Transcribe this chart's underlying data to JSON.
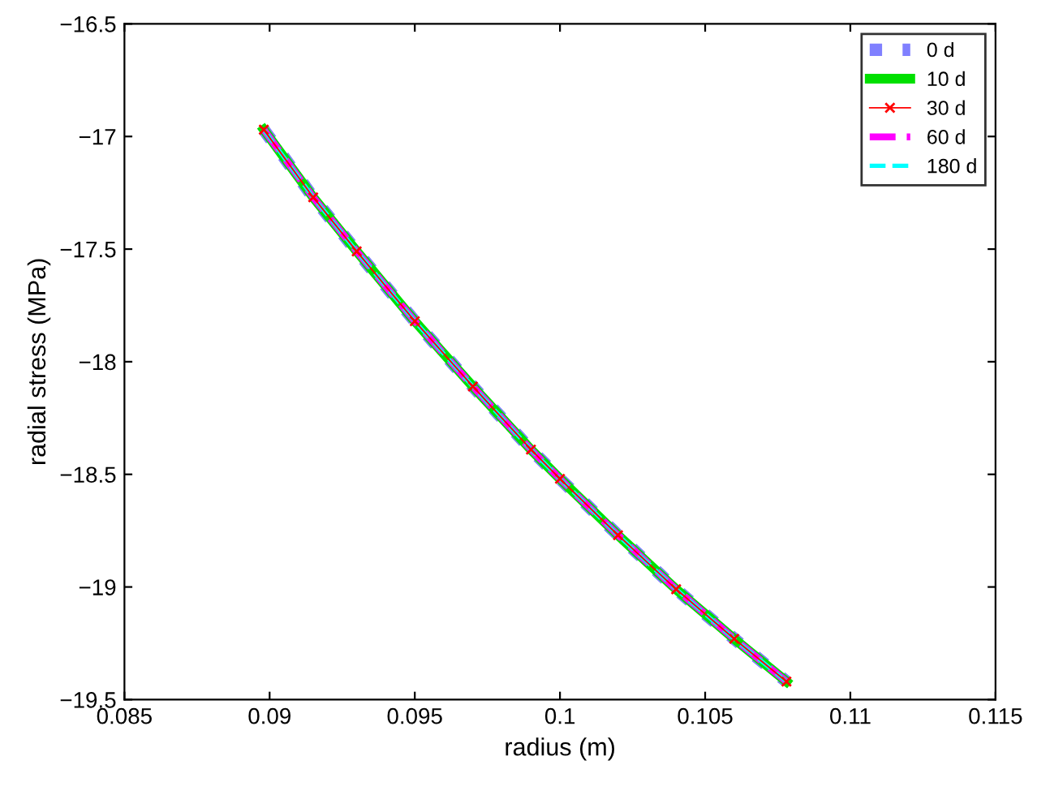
{
  "chart_data": {
    "type": "line",
    "xlabel": "radius (m)",
    "ylabel": "radial stress (MPa)",
    "x": [
      0.0898,
      0.0915,
      0.093,
      0.095,
      0.097,
      0.099,
      0.1,
      0.102,
      0.104,
      0.106,
      0.1078
    ],
    "series": [
      {
        "name": "0 d",
        "color": "#8080ff",
        "line_style": "dotted",
        "marker": "none",
        "values": [
          -16.97,
          -17.27,
          -17.51,
          -17.82,
          -18.11,
          -18.39,
          -18.52,
          -18.77,
          -19.01,
          -19.23,
          -19.42
        ]
      },
      {
        "name": "10 d",
        "color": "#00e000",
        "line_style": "solid",
        "marker": "none",
        "values": [
          -16.97,
          -17.27,
          -17.51,
          -17.82,
          -18.11,
          -18.39,
          -18.52,
          -18.77,
          -19.01,
          -19.23,
          -19.42
        ]
      },
      {
        "name": "30 d",
        "color": "#ff0000",
        "line_style": "solid",
        "marker": "cross",
        "values": [
          -16.97,
          -17.27,
          -17.51,
          -17.82,
          -18.11,
          -18.39,
          -18.52,
          -18.77,
          -19.01,
          -19.23,
          -19.42
        ]
      },
      {
        "name": "60 d",
        "color": "#ff00ff",
        "line_style": "dashed",
        "marker": "none",
        "values": [
          -16.97,
          -17.27,
          -17.51,
          -17.82,
          -18.11,
          -18.39,
          -18.52,
          -18.77,
          -19.01,
          -19.23,
          -19.42
        ]
      },
      {
        "name": "180 d",
        "color": "#00ffff",
        "line_style": "dashed",
        "marker": "none",
        "values": [
          -16.97,
          -17.27,
          -17.51,
          -17.82,
          -18.11,
          -18.39,
          -18.52,
          -18.77,
          -19.01,
          -19.23,
          -19.42
        ]
      }
    ],
    "xlim": [
      0.085,
      0.115
    ],
    "xticks": [
      0.085,
      0.09,
      0.095,
      0.1,
      0.105,
      0.11,
      0.115
    ],
    "ylim": [
      -19.5,
      -16.5
    ],
    "yticks": [
      {
        "value": -19.5,
        "label": "−19.5"
      },
      {
        "value": -19,
        "label": "−19"
      },
      {
        "value": -18.5,
        "label": "−18.5"
      },
      {
        "value": -18,
        "label": "−18"
      },
      {
        "value": -17.5,
        "label": "−17.5"
      },
      {
        "value": -17,
        "label": "−17"
      },
      {
        "value": -16.5,
        "label": "−16.5"
      }
    ],
    "grid": false,
    "legend": "top right"
  }
}
